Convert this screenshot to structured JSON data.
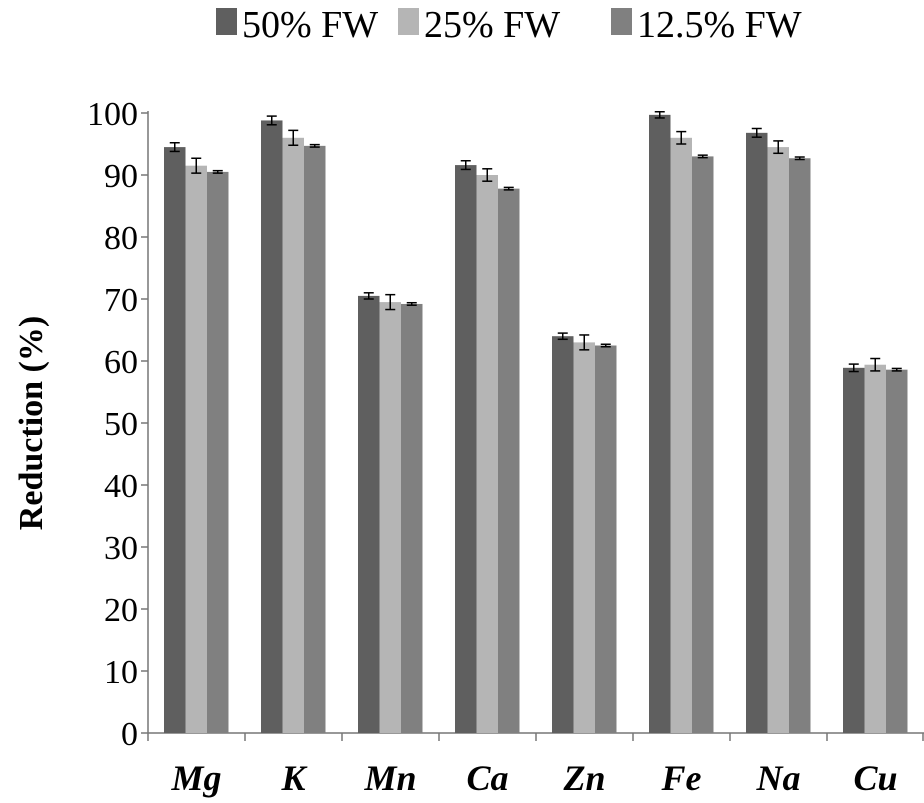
{
  "chart_data": {
    "type": "bar",
    "title": "",
    "xlabel": "",
    "ylabel": "Reduction (%)",
    "ylim": [
      0,
      100
    ],
    "yticks": [
      0,
      10,
      20,
      30,
      40,
      50,
      60,
      70,
      80,
      90,
      100
    ],
    "grid": false,
    "legend_position": "top",
    "categories": [
      "Mg",
      "K",
      "Mn",
      "Ca",
      "Zn",
      "Fe",
      "Na",
      "Cu"
    ],
    "series": [
      {
        "name": "50% FW",
        "color": "#5f5f5f",
        "values": [
          94.5,
          98.8,
          70.5,
          91.6,
          64.0,
          99.7,
          96.8,
          58.9
        ],
        "errors": [
          0.7,
          0.7,
          0.5,
          0.7,
          0.5,
          0.5,
          0.7,
          0.6
        ]
      },
      {
        "name": "25% FW",
        "color": "#b5b5b5",
        "values": [
          91.5,
          96.0,
          69.5,
          90.0,
          63.0,
          96.0,
          94.5,
          59.4
        ],
        "errors": [
          1.2,
          1.2,
          1.2,
          1.0,
          1.2,
          1.0,
          1.0,
          1.0
        ]
      },
      {
        "name": "12.5% FW",
        "color": "#808080",
        "values": [
          90.5,
          94.7,
          69.2,
          87.8,
          62.5,
          93.0,
          92.7,
          58.6
        ],
        "errors": [
          0.2,
          0.2,
          0.2,
          0.2,
          0.2,
          0.2,
          0.2,
          0.2
        ]
      }
    ]
  }
}
